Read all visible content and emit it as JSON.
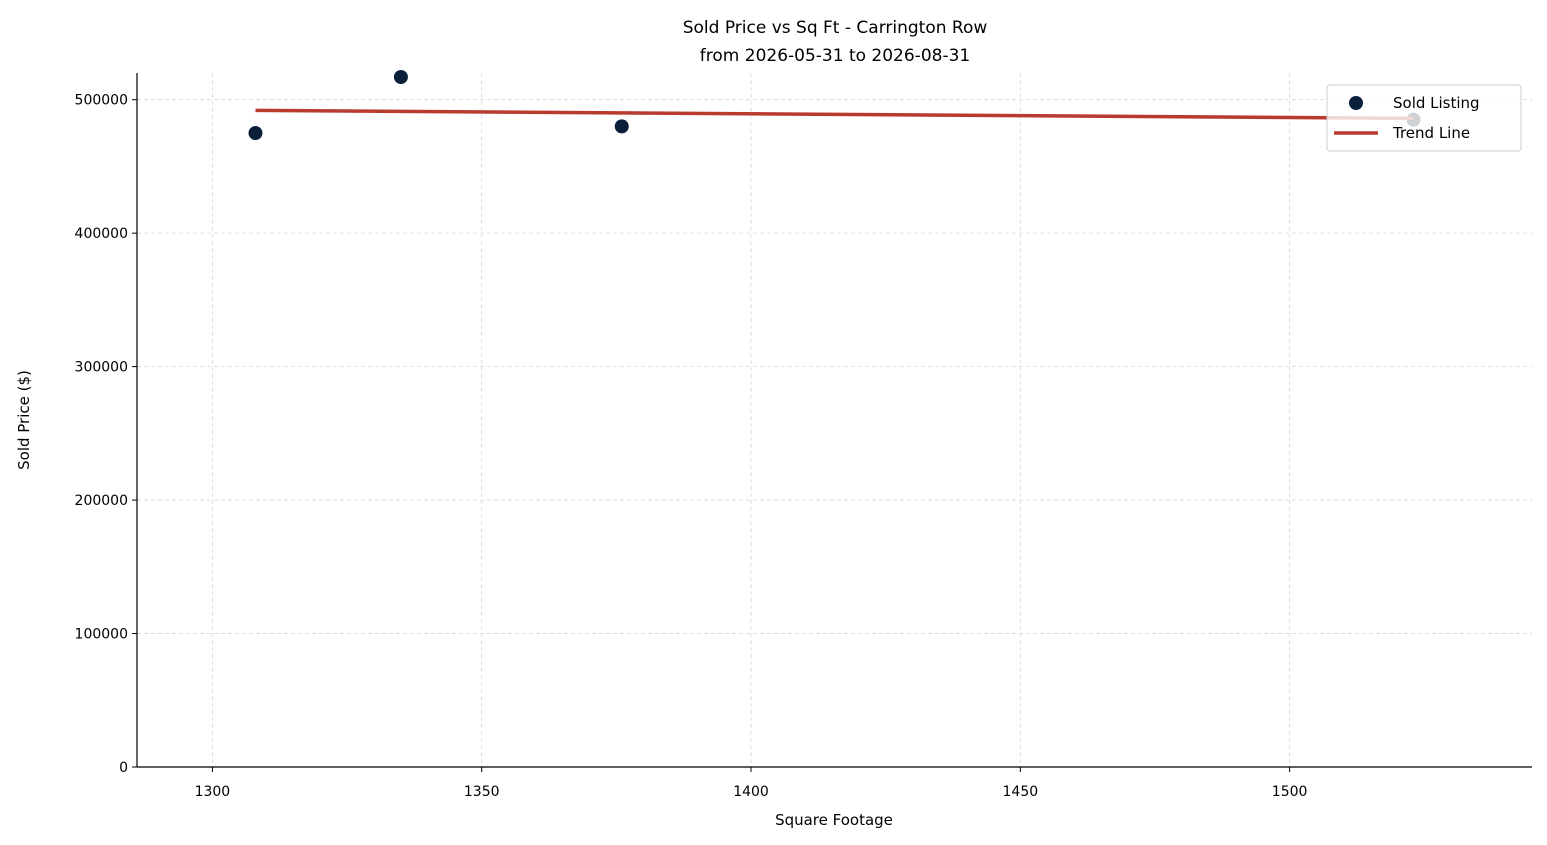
{
  "chart_data": {
    "type": "scatter",
    "title": "Sold Price vs Sq Ft - Carrington Row",
    "subtitle": "from 2026-05-31 to 2026-08-31",
    "x_label": "Square Footage",
    "y_label": "Sold Price ($)",
    "series": [
      {
        "name": "Sold Listing",
        "type": "scatter",
        "color": "#0b1f3a",
        "x": [
          1308,
          1335,
          1376,
          1523
        ],
        "values": [
          475000,
          517000,
          480000,
          485000
        ]
      },
      {
        "name": "Trend Line",
        "type": "line",
        "color": "#b93a2e",
        "x": [
          1308,
          1523
        ],
        "values": [
          492000,
          486000
        ]
      }
    ],
    "xlim": [
      1286,
      1545
    ],
    "xticks": [
      1300,
      1350,
      1400,
      1450,
      1500
    ],
    "ylim": [
      0,
      520000
    ],
    "yticks": [
      0,
      100000,
      200000,
      300000,
      400000,
      500000
    ],
    "grid": true,
    "legend": "upper right"
  }
}
